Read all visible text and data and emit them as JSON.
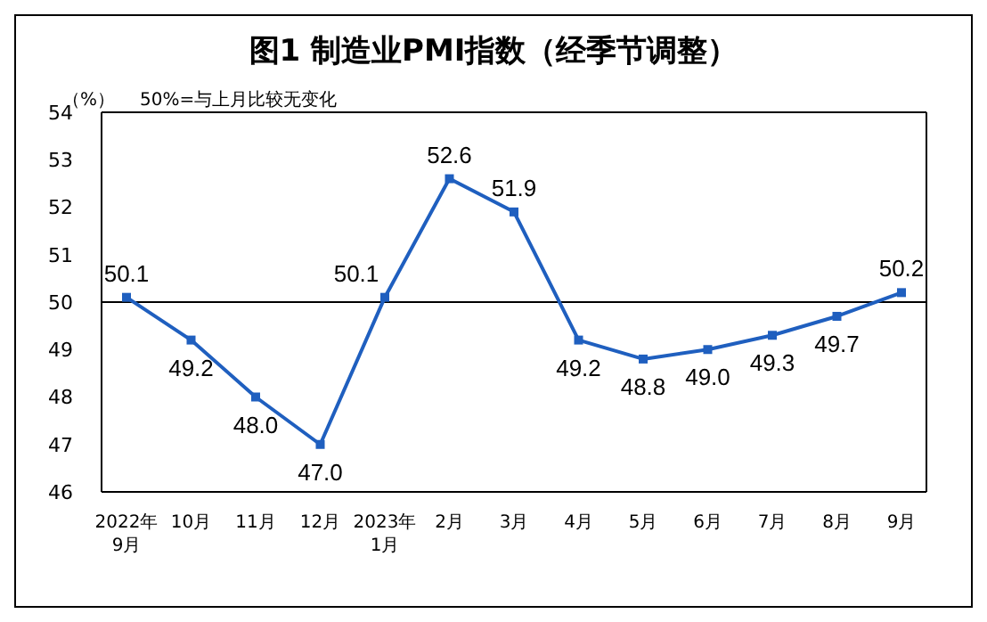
{
  "chart_data": {
    "type": "line",
    "title": "图1 制造业PMI指数（经季节调整）",
    "ylabel": "（%）",
    "annotations": [
      "50%=与上月比较无变化"
    ],
    "categories": [
      "2022年\n9月",
      "10月",
      "11月",
      "12月",
      "2023年\n1月",
      "2月",
      "3月",
      "4月",
      "5月",
      "6月",
      "7月",
      "8月",
      "9月"
    ],
    "series": [
      {
        "color": "#1f5fbf",
        "values": [
          50.1,
          49.2,
          48.0,
          47.0,
          50.1,
          52.6,
          51.9,
          49.2,
          48.8,
          49.0,
          49.3,
          49.7,
          50.2
        ]
      }
    ],
    "value_labels": [
      "50.1",
      "49.2",
      "48.0",
      "47.0",
      "50.1",
      "52.6",
      "51.9",
      "49.2",
      "48.8",
      "49.0",
      "49.3",
      "49.7",
      "50.2"
    ],
    "ylim": [
      46,
      54
    ],
    "yticks": [
      46,
      47,
      48,
      49,
      50,
      51,
      52,
      53,
      54
    ],
    "ref_lines": [
      {
        "axis": "y",
        "value": 50,
        "color": "#000000"
      }
    ],
    "marker": "square",
    "line_style": "solid",
    "grid": false,
    "legend": false
  }
}
